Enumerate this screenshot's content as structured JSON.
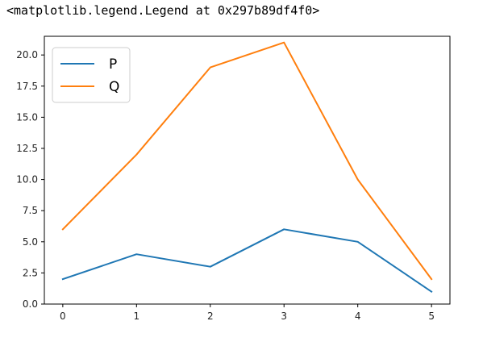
{
  "output": {
    "repr_text": "<matplotlib.legend.Legend at 0x297b89df4f0>"
  },
  "chart_data": {
    "type": "line",
    "title": "",
    "xlabel": "",
    "ylabel": "",
    "x": [
      0,
      1,
      2,
      3,
      4,
      5
    ],
    "xticks": [
      "0",
      "1",
      "2",
      "3",
      "4",
      "5"
    ],
    "yticks": [
      "0.0",
      "2.5",
      "5.0",
      "7.5",
      "10.0",
      "12.5",
      "15.0",
      "17.5",
      "20.0"
    ],
    "ytick_values": [
      0,
      2.5,
      5,
      7.5,
      10,
      12.5,
      15,
      17.5,
      20
    ],
    "xlim": [
      -0.25,
      5.25
    ],
    "ylim": [
      0,
      21.5
    ],
    "grid": false,
    "legend": "upper-left",
    "series": [
      {
        "name": "P",
        "color": "#1f77b4",
        "values": [
          2,
          4,
          3,
          6,
          5,
          1
        ]
      },
      {
        "name": "Q",
        "color": "#ff7f0e",
        "values": [
          6,
          12,
          19,
          21,
          10,
          2
        ]
      }
    ]
  }
}
